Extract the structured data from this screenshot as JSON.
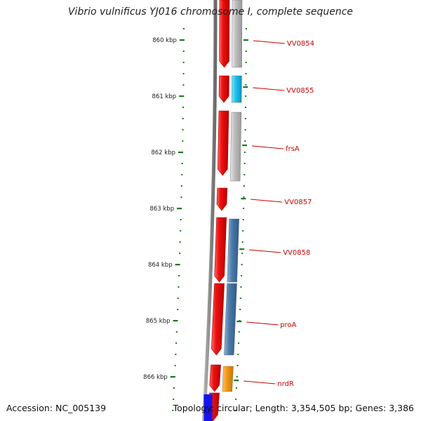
{
  "title": "Vibrio vulnificus YJ016 chromosome I, complete sequence",
  "footer": {
    "accession": "Accession: NC_005139",
    "summary": "Topology: circular; Length: 3,354,505 bp; Genes: 3,386"
  },
  "ticks": [
    {
      "label": "860 kbp"
    },
    {
      "label": "861 kbp"
    },
    {
      "label": "862 kbp"
    },
    {
      "label": "863 kbp"
    },
    {
      "label": "864 kbp"
    },
    {
      "label": "865 kbp"
    },
    {
      "label": "866 kbp"
    }
  ],
  "genes": [
    {
      "label": "VV0854",
      "color": "#b8b8b8"
    },
    {
      "label": "VV0855",
      "color": "#1ec3ee"
    },
    {
      "label": "frsA",
      "color": "#b8b8b8"
    },
    {
      "label": "VV0857",
      "color": "#b8b8b8"
    },
    {
      "label": "VV0858",
      "color": "#4a7bab"
    },
    {
      "label": "proA",
      "color": "#4a7bab"
    },
    {
      "label": "nrdR",
      "color": "#f39a1c"
    }
  ],
  "colors": {
    "cds": "#ee1111",
    "tick": "#1a7a1a",
    "label": "#cc0000",
    "backbone": "#8c8c8c"
  }
}
